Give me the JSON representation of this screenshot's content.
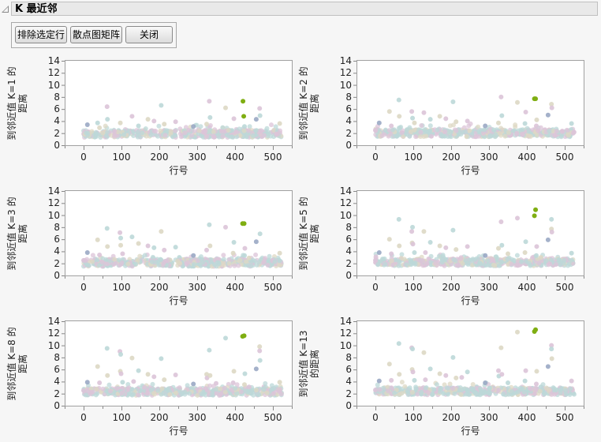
{
  "window": {
    "title": "K 最近邻"
  },
  "toolbar": {
    "buttons": [
      {
        "label": "排除选定行"
      },
      {
        "label": "散点图矩阵"
      },
      {
        "label": "关闭"
      }
    ]
  },
  "colors": {
    "highlight": "#7fae12",
    "pink": "#dcc4d8",
    "teal": "#bcd8d8",
    "beige": "#ddd8c4",
    "slate": "#9aa8c4",
    "frame": "#a0a0a0"
  },
  "chart_data": [
    {
      "type": "scatter",
      "ylabel": "到邻近值 K=1 的距离",
      "xlabel": "行号",
      "xlim": [
        -50,
        550
      ],
      "ylim": [
        0,
        14
      ],
      "xticks": [
        0,
        100,
        200,
        300,
        400,
        500
      ],
      "yticks": [
        0,
        2,
        4,
        6,
        8,
        10,
        12,
        14
      ],
      "outliers": [
        [
          10,
          3.4
        ],
        [
          37,
          3.7
        ],
        [
          42,
          2.9
        ],
        [
          62,
          6.4
        ],
        [
          63,
          4.3
        ],
        [
          97,
          3.7
        ],
        [
          128,
          4.8
        ],
        [
          145,
          3.2
        ],
        [
          170,
          4.3
        ],
        [
          186,
          4.0
        ],
        [
          205,
          6.6
        ],
        [
          213,
          3.5
        ],
        [
          243,
          3.9
        ],
        [
          290,
          3.1
        ],
        [
          325,
          3.5
        ],
        [
          332,
          7.3
        ],
        [
          334,
          4.6
        ],
        [
          375,
          6.2
        ],
        [
          397,
          4.4
        ],
        [
          425,
          3.1
        ],
        [
          456,
          4.3
        ],
        [
          465,
          6.1
        ],
        [
          466,
          4.9
        ],
        [
          518,
          3.6
        ]
      ],
      "highlight": [
        [
          421,
          7.3
        ],
        [
          423,
          4.8
        ]
      ],
      "baseline": 1.9
    },
    {
      "type": "scatter",
      "ylabel": "到邻近值 K=2 的距离",
      "xlabel": "行号",
      "xlim": [
        -50,
        550
      ],
      "ylim": [
        0,
        14
      ],
      "xticks": [
        0,
        100,
        200,
        300,
        400,
        500
      ],
      "yticks": [
        0,
        2,
        4,
        6,
        8,
        10,
        12,
        14
      ],
      "outliers": [
        [
          0,
          2.5
        ],
        [
          10,
          3.7
        ],
        [
          37,
          5.6
        ],
        [
          42,
          3.2
        ],
        [
          62,
          7.5
        ],
        [
          63,
          4.8
        ],
        [
          96,
          5.6
        ],
        [
          98,
          4.5
        ],
        [
          103,
          3.7
        ],
        [
          128,
          5.4
        ],
        [
          145,
          4.3
        ],
        [
          170,
          4.8
        ],
        [
          186,
          4.4
        ],
        [
          205,
          7.2
        ],
        [
          213,
          3.9
        ],
        [
          243,
          4.0
        ],
        [
          290,
          3.2
        ],
        [
          325,
          3.7
        ],
        [
          332,
          8.0
        ],
        [
          334,
          4.9
        ],
        [
          375,
          7.1
        ],
        [
          397,
          5.5
        ],
        [
          395,
          3.6
        ],
        [
          426,
          4.2
        ],
        [
          425,
          3.2
        ],
        [
          456,
          5.0
        ],
        [
          465,
          6.8
        ],
        [
          466,
          6.2
        ],
        [
          518,
          3.6
        ]
      ],
      "highlight": [
        [
          420,
          7.7
        ],
        [
          423,
          7.7
        ]
      ],
      "baseline": 2.0
    },
    {
      "type": "scatter",
      "ylabel": "到邻近值 K=3 的距离",
      "xlabel": "行号",
      "xlim": [
        -50,
        550
      ],
      "ylim": [
        0,
        14
      ],
      "xticks": [
        0,
        100,
        200,
        300,
        400,
        500
      ],
      "yticks": [
        0,
        2,
        4,
        6,
        8,
        10,
        12,
        14
      ],
      "outliers": [
        [
          0,
          2.5
        ],
        [
          10,
          3.8
        ],
        [
          37,
          5.9
        ],
        [
          42,
          3.4
        ],
        [
          62,
          7.8
        ],
        [
          63,
          4.8
        ],
        [
          96,
          7.1
        ],
        [
          98,
          6.2
        ],
        [
          98,
          5.0
        ],
        [
          103,
          3.6
        ],
        [
          128,
          6.4
        ],
        [
          145,
          5.3
        ],
        [
          170,
          4.9
        ],
        [
          186,
          4.6
        ],
        [
          205,
          7.3
        ],
        [
          213,
          4.2
        ],
        [
          243,
          4.7
        ],
        [
          290,
          3.3
        ],
        [
          325,
          4.2
        ],
        [
          332,
          8.4
        ],
        [
          334,
          4.9
        ],
        [
          375,
          8.0
        ],
        [
          397,
          5.5
        ],
        [
          395,
          3.7
        ],
        [
          426,
          4.5
        ],
        [
          425,
          3.3
        ],
        [
          437,
          2.9
        ],
        [
          456,
          5.6
        ],
        [
          466,
          6.9
        ],
        [
          518,
          3.7
        ]
      ],
      "highlight": [
        [
          420,
          8.6
        ],
        [
          424,
          8.6
        ]
      ],
      "baseline": 2.1
    },
    {
      "type": "scatter",
      "ylabel": "到邻近值 K=5 的距离",
      "xlabel": "行号",
      "xlim": [
        -50,
        550
      ],
      "ylim": [
        0,
        14
      ],
      "xticks": [
        0,
        100,
        200,
        300,
        400,
        500
      ],
      "yticks": [
        0,
        2,
        4,
        6,
        8,
        10,
        12,
        14
      ],
      "outliers": [
        [
          0,
          2.5
        ],
        [
          10,
          3.8
        ],
        [
          37,
          6.0
        ],
        [
          42,
          3.6
        ],
        [
          62,
          9.3
        ],
        [
          63,
          4.9
        ],
        [
          96,
          7.3
        ],
        [
          98,
          8.0
        ],
        [
          97,
          5.4
        ],
        [
          99,
          5.2
        ],
        [
          103,
          3.8
        ],
        [
          128,
          7.3
        ],
        [
          132,
          3.8
        ],
        [
          145,
          5.5
        ],
        [
          170,
          4.9
        ],
        [
          186,
          4.6
        ],
        [
          205,
          7.5
        ],
        [
          213,
          4.3
        ],
        [
          243,
          4.8
        ],
        [
          290,
          3.3
        ],
        [
          325,
          4.5
        ],
        [
          332,
          8.9
        ],
        [
          334,
          5.0
        ],
        [
          350,
          3.6
        ],
        [
          375,
          9.5
        ],
        [
          397,
          5.6
        ],
        [
          395,
          3.8
        ],
        [
          426,
          4.8
        ],
        [
          425,
          3.3
        ],
        [
          437,
          3.0
        ],
        [
          456,
          5.9
        ],
        [
          465,
          9.3
        ],
        [
          465,
          7.7
        ],
        [
          466,
          7.2
        ],
        [
          518,
          3.7
        ]
      ],
      "highlight": [
        [
          420,
          9.9
        ],
        [
          423,
          10.9
        ]
      ],
      "baseline": 2.2
    },
    {
      "type": "scatter",
      "ylabel": "到邻近值 K=8 的距离",
      "xlabel": "行号",
      "xlim": [
        -50,
        550
      ],
      "ylim": [
        0,
        14
      ],
      "xticks": [
        0,
        100,
        200,
        300,
        400,
        500
      ],
      "yticks": [
        0,
        2,
        4,
        6,
        8,
        10,
        12,
        14
      ],
      "outliers": [
        [
          0,
          2.5
        ],
        [
          10,
          3.9
        ],
        [
          37,
          6.5
        ],
        [
          42,
          3.8
        ],
        [
          62,
          9.5
        ],
        [
          63,
          5.0
        ],
        [
          96,
          9.0
        ],
        [
          98,
          8.5
        ],
        [
          97,
          5.7
        ],
        [
          99,
          5.3
        ],
        [
          103,
          3.9
        ],
        [
          128,
          7.9
        ],
        [
          132,
          4.0
        ],
        [
          145,
          5.8
        ],
        [
          170,
          5.2
        ],
        [
          186,
          4.8
        ],
        [
          205,
          7.8
        ],
        [
          213,
          4.3
        ],
        [
          243,
          5.1
        ],
        [
          290,
          3.6
        ],
        [
          325,
          5.2
        ],
        [
          326,
          4.6
        ],
        [
          332,
          9.2
        ],
        [
          334,
          5.0
        ],
        [
          350,
          3.7
        ],
        [
          375,
          11.2
        ],
        [
          397,
          5.7
        ],
        [
          395,
          3.8
        ],
        [
          426,
          5.3
        ],
        [
          425,
          3.5
        ],
        [
          437,
          3.1
        ],
        [
          456,
          6.1
        ],
        [
          465,
          9.8
        ],
        [
          465,
          9.1
        ],
        [
          466,
          7.5
        ],
        [
          518,
          3.9
        ]
      ],
      "highlight": [
        [
          420,
          11.5
        ],
        [
          424,
          11.6
        ]
      ],
      "baseline": 2.3
    },
    {
      "type": "scatter",
      "ylabel": "到邻近值 K=13 的距离",
      "xlabel": "行号",
      "xlim": [
        -50,
        550
      ],
      "ylim": [
        0,
        14
      ],
      "xticks": [
        0,
        100,
        200,
        300,
        400,
        500
      ],
      "yticks": [
        0,
        2,
        4,
        6,
        8,
        10,
        12,
        14
      ],
      "outliers": [
        [
          0,
          2.6
        ],
        [
          10,
          4.1
        ],
        [
          37,
          6.9
        ],
        [
          42,
          4.2
        ],
        [
          62,
          10.3
        ],
        [
          63,
          5.2
        ],
        [
          96,
          9.6
        ],
        [
          98,
          9.4
        ],
        [
          97,
          6.0
        ],
        [
          99,
          5.6
        ],
        [
          103,
          4.2
        ],
        [
          128,
          8.8
        ],
        [
          132,
          4.3
        ],
        [
          145,
          6.1
        ],
        [
          170,
          5.3
        ],
        [
          186,
          5.0
        ],
        [
          205,
          8.0
        ],
        [
          213,
          4.6
        ],
        [
          228,
          4.7
        ],
        [
          243,
          5.6
        ],
        [
          290,
          3.8
        ],
        [
          325,
          5.8
        ],
        [
          326,
          4.9
        ],
        [
          332,
          9.6
        ],
        [
          334,
          5.2
        ],
        [
          350,
          3.8
        ],
        [
          375,
          12.2
        ],
        [
          397,
          5.8
        ],
        [
          395,
          4.1
        ],
        [
          426,
          5.7
        ],
        [
          425,
          3.6
        ],
        [
          437,
          3.1
        ],
        [
          456,
          6.5
        ],
        [
          465,
          10.0
        ],
        [
          465,
          9.4
        ],
        [
          466,
          7.8
        ],
        [
          518,
          4.1
        ]
      ],
      "highlight": [
        [
          420,
          12.3
        ],
        [
          423,
          12.6
        ]
      ],
      "baseline": 2.4
    }
  ],
  "plots": [
    {
      "ylabel": "到邻近值 K=1 的距离",
      "xlabel": "行号"
    },
    {
      "ylabel": "到邻近值 K=2 的距离",
      "xlabel": "行号"
    },
    {
      "ylabel": "到邻近值 K=3 的距离",
      "xlabel": "行号"
    },
    {
      "ylabel": "到邻近值 K=5 的距离",
      "xlabel": "行号"
    },
    {
      "ylabel": "到邻近值 K=8 的距离",
      "xlabel": "行号"
    },
    {
      "ylabel": "到邻近值 K=13 的距离",
      "xlabel": "行号"
    }
  ]
}
